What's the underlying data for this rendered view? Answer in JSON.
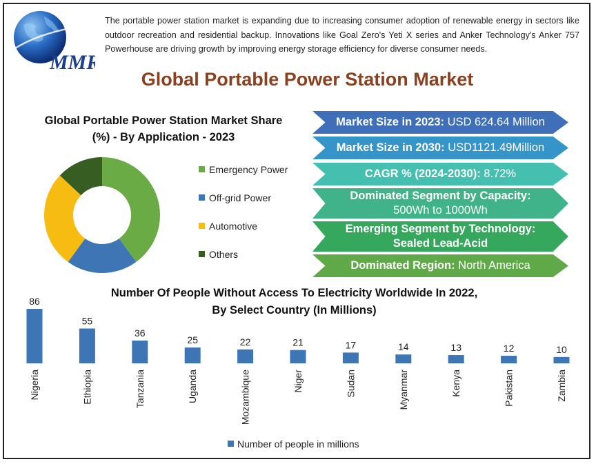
{
  "logo": {
    "text": "MMR",
    "icon": "globe-icon"
  },
  "intro": "The portable power station market is expanding due to increasing consumer adoption of renewable energy in sectors like outdoor recreation and residential backup. Innovations like Goal Zero's Yeti X series and Anker Technology's Anker 757 Powerhouse are driving growth by improving energy storage efficiency for diverse consumer needs.",
  "title": "Global Portable Power Station Market",
  "highlights": [
    {
      "label": "Market Size in 2023:",
      "value": " USD 624.64 Million",
      "color": "#3e6fb8"
    },
    {
      "label": "Market Size in 2030:",
      "value": " USD1121.49Million",
      "color": "#3594c8"
    },
    {
      "label": "CAGR % (2024-2030):",
      "value": " 8.72%",
      "color": "#45bfb0"
    },
    {
      "label": "Dominated Segment by Capacity:",
      "value": "500Wh to 1000Wh",
      "color": "#40b38a"
    },
    {
      "label": "Emerging Segment by Technology:",
      "value": "Sealed Lead-Acid",
      "color": "#36a85e"
    },
    {
      "label": "Dominated Region:",
      "value": " North America",
      "color": "#5fa948"
    }
  ],
  "chart_data": [
    {
      "type": "pie",
      "title": "Global Portable Power Station Market Share (%) - By Application - 2023",
      "categories": [
        "Emergency Power",
        "Off-grid Power",
        "Automotive",
        "Others"
      ],
      "values": [
        40,
        20,
        27,
        13
      ],
      "colors": [
        "#6aab46",
        "#3e75b4",
        "#f7bc11",
        "#385d22"
      ],
      "legend": "right"
    },
    {
      "type": "bar",
      "title": "Number Of People Without Access To Electricity Worldwide In 2022, By Select Country (In Millions)",
      "categories": [
        "Nigeria",
        "Ethiopia",
        "Tanzania",
        "Uganda",
        "Mozambique",
        "Niger",
        "Sudan",
        "Myanmar",
        "Kenya",
        "Pakistan",
        "Zambia"
      ],
      "series": [
        {
          "name": "Number of people in millions",
          "values": [
            86,
            55,
            36,
            25,
            22,
            21,
            17,
            14,
            13,
            12,
            10
          ],
          "color": "#3e75b4"
        }
      ],
      "ylim": [
        0,
        86
      ],
      "grid": false,
      "legend": "bottom"
    }
  ]
}
